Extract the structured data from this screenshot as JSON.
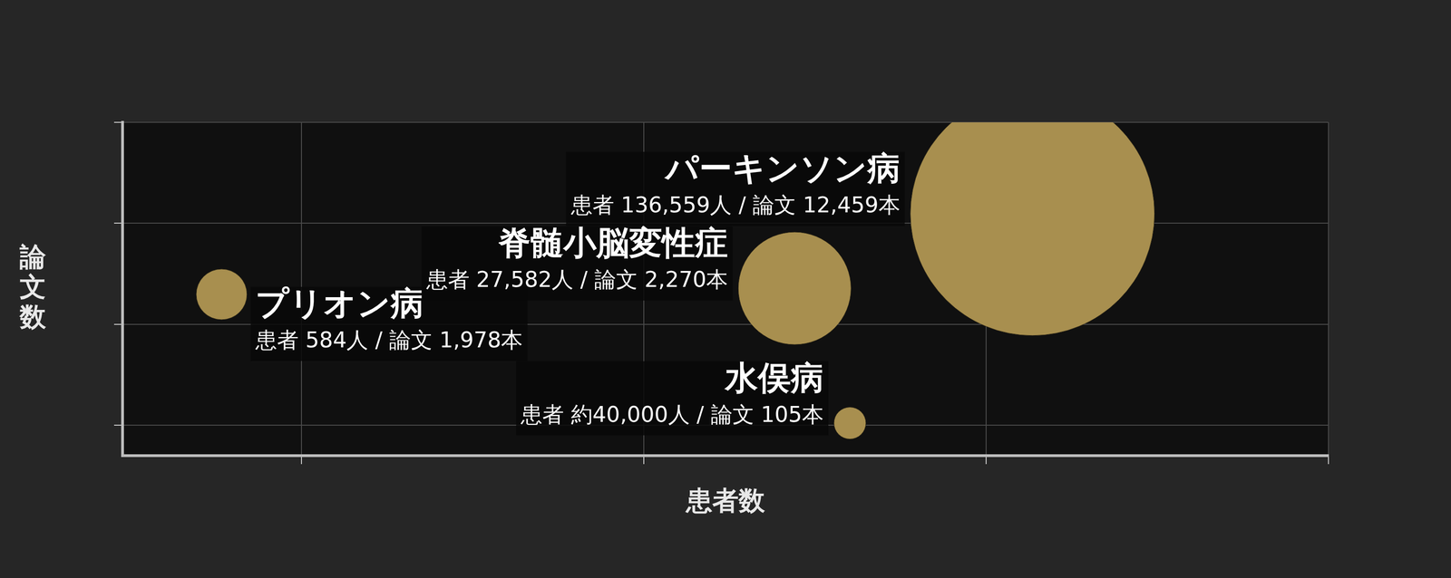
{
  "chart_data": {
    "type": "bubble",
    "x_label": "患者数",
    "y_label": "論文数",
    "categories": [
      "プリオン病",
      "脊髄小脳変性症",
      "水俣病",
      "パーキンソン病"
    ],
    "x": [
      584,
      27582,
      40000,
      136559
    ],
    "values": [
      1978,
      2270,
      105,
      12459
    ],
    "sizes": [
      27,
      60,
      17,
      130
    ],
    "value_labels": [
      "患者 584人 / 論文 1,978本",
      "患者 27,582人 / 論文 2,270本",
      "患者 約40,000人 / 論文 105本",
      "患者 136,559人 / 論文 12,459本"
    ],
    "data_labels": true,
    "color": "#a88f4f",
    "log": true,
    "grid": true,
    "tick_labels": false,
    "xlim": [
      300,
      1000000
    ],
    "xticks": [
      1000,
      10000,
      100000,
      1000000
    ],
    "ylim": [
      50,
      100000
    ],
    "yticks": [
      100,
      1000,
      10000,
      100000
    ]
  }
}
